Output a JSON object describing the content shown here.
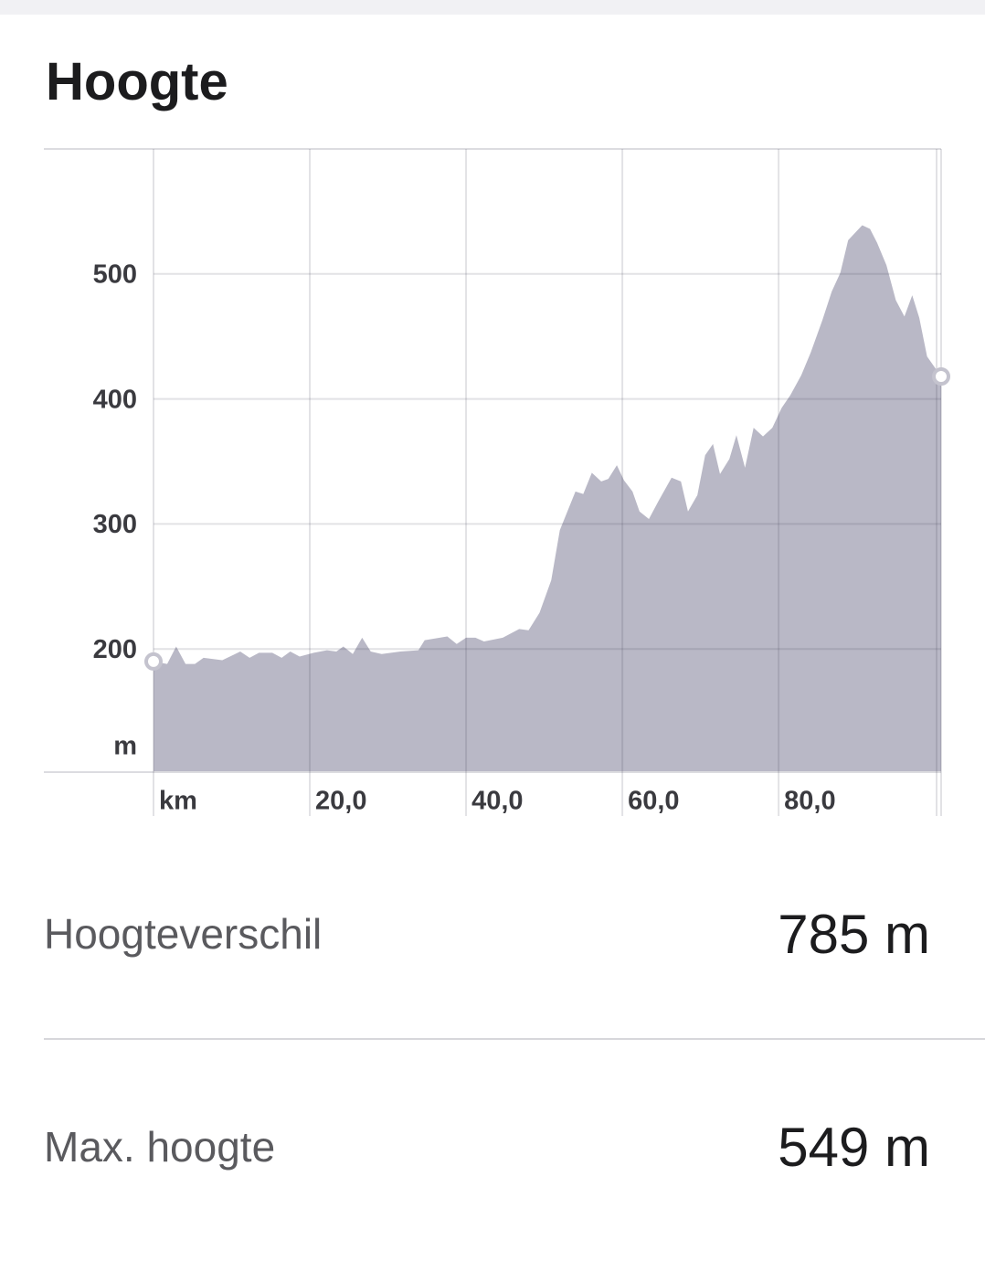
{
  "header": {
    "title": "Hoogte"
  },
  "chart_data": {
    "type": "area",
    "x": [
      0,
      1.75,
      2.9,
      4.1,
      5.3,
      6.4,
      8.8,
      11.1,
      12.3,
      13.5,
      15.2,
      16.4,
      17.5,
      18.7,
      20.5,
      22.2,
      23.4,
      24.3,
      25.5,
      26.7,
      27.8,
      29.2,
      31.6,
      33.9,
      34.7,
      37.6,
      38.8,
      40,
      41.2,
      42.3,
      44.7,
      46.8,
      48,
      49.4,
      50.9,
      52,
      54,
      55,
      56.1,
      57.3,
      58.2,
      59.3,
      60.2,
      61.3,
      62.2,
      63.4,
      64.6,
      66.3,
      67.5,
      68.4,
      69.6,
      70.6,
      71.6,
      72.5,
      73.7,
      74.6,
      75.7,
      76.8,
      78,
      79.2,
      80.4,
      81.5,
      82.9,
      84.1,
      85.6,
      86.8,
      87.9,
      88.9,
      90.7,
      91.7,
      92.6,
      93.8,
      95,
      96.1,
      97.1,
      98,
      99,
      100.8
    ],
    "values": [
      190,
      188,
      202,
      188,
      188,
      193,
      191,
      198,
      193,
      197,
      197,
      193,
      198,
      194,
      197,
      199,
      198,
      202,
      196,
      209,
      198,
      196,
      198,
      199,
      207,
      210,
      204,
      209,
      209,
      206,
      209,
      216,
      215,
      229,
      255,
      295,
      326,
      324,
      341,
      334,
      336,
      347,
      335,
      326,
      310,
      304,
      318,
      337,
      334,
      310,
      323,
      355,
      364,
      340,
      352,
      371,
      345,
      377,
      370,
      377,
      393,
      403,
      419,
      437,
      463,
      486,
      501,
      527,
      539,
      536,
      525,
      507,
      479,
      466,
      483,
      465,
      434,
      418
    ],
    "color": "#b9b8c6",
    "xlim": [
      0,
      100.8
    ],
    "ylim": [
      101.5,
      600
    ],
    "xticks": [
      {
        "value": 0,
        "label": "km"
      },
      {
        "value": 20,
        "label": "20,0"
      },
      {
        "value": 40,
        "label": "40,0"
      },
      {
        "value": 60,
        "label": "60,0"
      },
      {
        "value": 80,
        "label": "80,0"
      }
    ],
    "yticks": [
      200,
      300,
      400,
      500
    ],
    "y_label": "m",
    "grid": true
  },
  "stats": [
    {
      "label": "Hoogteverschil",
      "value": "785 m"
    },
    {
      "label": "Max. hoogte",
      "value": "549 m"
    }
  ]
}
